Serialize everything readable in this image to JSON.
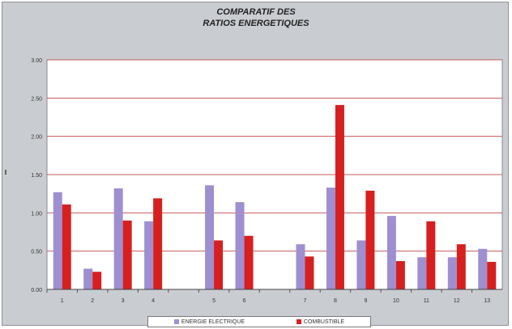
{
  "chart_data": {
    "type": "bar",
    "title": "COMPARATIF DES\nRATIOS ENERGETIQUES",
    "ylabel": "",
    "ylim": [
      0,
      3
    ],
    "yticks": [
      "0.00",
      "0.50",
      "1.00",
      "1.50",
      "2.00",
      "2.50",
      "3.00"
    ],
    "grid": true,
    "legend_position": "bottom",
    "categories": [
      "1",
      "2",
      "3",
      "4",
      "",
      "5",
      "6",
      "",
      "7",
      "8",
      "9",
      "10",
      "11",
      "12",
      "13"
    ],
    "series": [
      {
        "name": "ENERGIE ELECTRIQUE",
        "color": "#9e8fd0",
        "values": [
          1.27,
          0.27,
          1.32,
          0.89,
          null,
          1.36,
          1.14,
          null,
          0.59,
          1.33,
          0.64,
          0.96,
          0.42,
          0.42,
          0.53
        ]
      },
      {
        "name": "COMBUSTIBLE",
        "color": "#d62020",
        "values": [
          1.11,
          0.23,
          0.9,
          1.19,
          null,
          0.64,
          0.7,
          null,
          0.43,
          2.41,
          1.29,
          0.37,
          0.89,
          0.59,
          0.36
        ]
      }
    ]
  }
}
